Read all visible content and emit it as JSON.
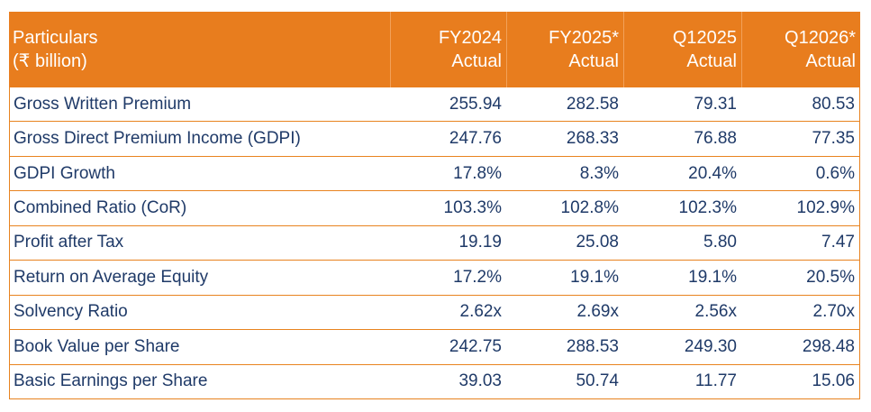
{
  "colors": {
    "header_bg": "#E87D1E",
    "border_orange": "#E8831F",
    "header_separator": "#F2A159",
    "header_text": "#FFFFFF",
    "body_text": "#1F3A68",
    "page_bg": "#FFFFFF"
  },
  "chart_data": {
    "type": "table",
    "title": "",
    "header": {
      "col0_line1": "Particulars",
      "col0_line2": "(₹ billion)",
      "periods": [
        {
          "period": "FY2024",
          "sub": "Actual"
        },
        {
          "period": "FY2025*",
          "sub": "Actual"
        },
        {
          "period": "Q12025",
          "sub": "Actual"
        },
        {
          "period": "Q12026*",
          "sub": "Actual"
        }
      ]
    },
    "rows": [
      {
        "label": "Gross Written Premium",
        "values": [
          "255.94",
          "282.58",
          "79.31",
          "80.53"
        ]
      },
      {
        "label": "Gross Direct Premium Income (GDPI)",
        "values": [
          "247.76",
          "268.33",
          "76.88",
          "77.35"
        ]
      },
      {
        "label": "GDPI Growth",
        "values": [
          "17.8%",
          "8.3%",
          "20.4%",
          "0.6%"
        ]
      },
      {
        "label": "Combined Ratio (CoR)",
        "values": [
          "103.3%",
          "102.8%",
          "102.3%",
          "102.9%"
        ]
      },
      {
        "label": "Profit after Tax",
        "values": [
          "19.19",
          "25.08",
          "5.80",
          "7.47"
        ]
      },
      {
        "label": "Return on Average Equity",
        "values": [
          "17.2%",
          "19.1%",
          "19.1%",
          "20.5%"
        ]
      },
      {
        "label": "Solvency Ratio",
        "values": [
          "2.62x",
          "2.69x",
          "2.56x",
          "2.70x"
        ]
      },
      {
        "label": "Book Value per Share",
        "values": [
          "242.75",
          "288.53",
          "249.30",
          "298.48"
        ]
      },
      {
        "label": "Basic Earnings per Share",
        "values": [
          "39.03",
          "50.74",
          "11.77",
          "15.06"
        ]
      }
    ]
  }
}
